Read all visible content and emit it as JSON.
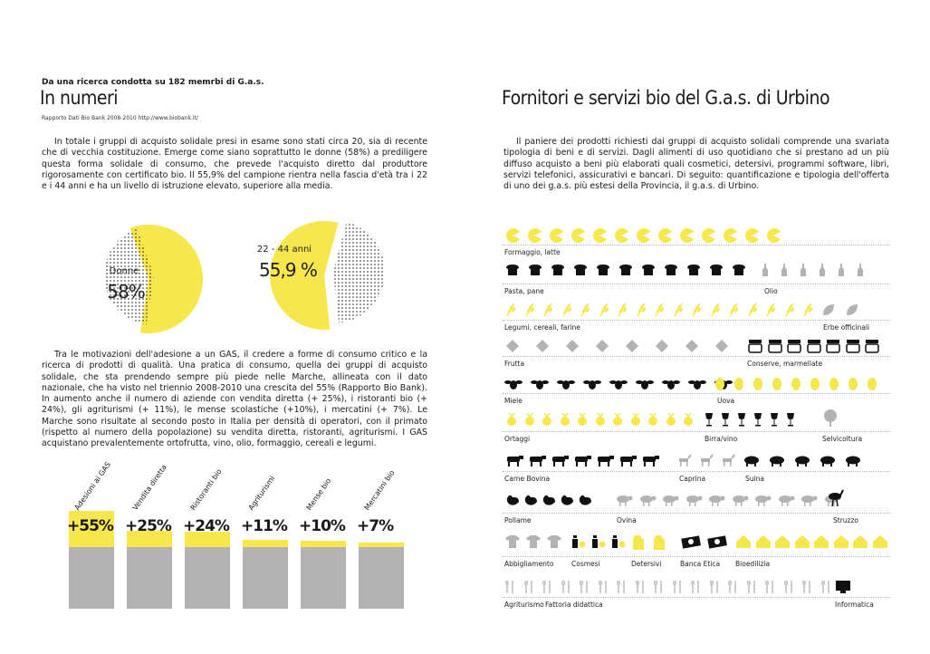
{
  "left": {
    "intro": "Da una ricerca condotta su 182 memrbi di G.a.s.",
    "title": "In numeri",
    "source": "Rapporto Dati Bio Bank 2008-2010 http://www.biobank.it/",
    "paragraph1": "In totale i gruppi di acquisto solidale presi in esame sono stati circa 20, sia di recente che di vecchia costituzione. Emerge come siano soprattutto le donne (58%) a prediligere questa forma solidale di consumo, che prevede l'acquisto diretto dal produttore rigorosamente con certificato bio. Il 55,9% del campione rientra nella fascia d'età tra i 22 e i 44 anni e ha un livello di istruzione elevato, superiore alla media.",
    "pie1": {
      "label": "Donne",
      "value": "58%",
      "fraction": 0.58
    },
    "pie2": {
      "label": "22 - 44 anni",
      "value": "55,9 %",
      "fraction": 0.559
    },
    "paragraph2": "Tra le motivazioni dell'adesione a un GAS, il credere a forme di consumo critico e la ricerca di prodotti di qualità. Una pratica di consumo, quella dei gruppi di acquisto solidale, che sta prendendo sempre più piede nelle Marche, allineata con il dato nazionale, che ha visto nel triennio 2008-2010 una crescita del 55% (Rapporto Bio Bank). In aumento anche il numero di aziende con vendita diretta (+ 25%), i ristoranti bio (+ 24%), gli agriturismi (+ 11%), le mense scolastiche (+10%), i mercatini (+ 7%). Le Marche sono risultate al secondo posto in Italia per densità di operatori, con il primato (rispetto al numero della popolazione) su vendita diretta, ristoranti, agriturismi. I GAS acquistano prevalentemente ortofrutta, vino, olio, formaggio, cereali e legumi.",
    "bars": [
      {
        "label": "Adesioni ai GAS",
        "value": "+55%",
        "pct": 55
      },
      {
        "label": "Vendita diretta",
        "value": "+25%",
        "pct": 25
      },
      {
        "label": "Ristoranti bio",
        "value": "+24%",
        "pct": 24
      },
      {
        "label": "Agriturismi",
        "value": "+11%",
        "pct": 11
      },
      {
        "label": "Mense bio",
        "value": "+10%",
        "pct": 10
      },
      {
        "label": "Mercatini bio",
        "value": "+7%",
        "pct": 7
      }
    ]
  },
  "right": {
    "title": "Fornitori e servizi bio del G.a.s. di Urbino",
    "paragraph": "Il paniere dei prodotti richiesti dai gruppi di acquisto solidali comprende una svariata tipologia di beni e di servizi. Dagli alimenti di uso quotidiano che si prestano ad un più diffuso acquisto a beni più elaborati quali cosmetici, detersivi, programmi software, libri, servizi telefonici, assicurativi e bancari. Di seguito: quantificazione e tipologia dell'offerta di uno dei g.a.s. più estesi della Provincia, il g.a.s. di Urbino.",
    "rows": [
      {
        "labels": [
          {
            "text": "Formaggio, latte",
            "offset": 0
          }
        ]
      },
      {
        "labels": [
          {
            "text": "Pasta, pane",
            "offset": 0
          },
          {
            "text": "Olio",
            "offset": 287
          }
        ]
      },
      {
        "labels": [
          {
            "text": "Legumi, cereali, farine",
            "offset": 0
          },
          {
            "text": "Erbe officinali",
            "offset": 352
          }
        ]
      },
      {
        "labels": [
          {
            "text": "Frutta",
            "offset": 0
          },
          {
            "text": "Conserve, marmellate",
            "offset": 268
          }
        ]
      },
      {
        "labels": [
          {
            "text": "Miele",
            "offset": 0
          },
          {
            "text": "Uova",
            "offset": 235
          }
        ]
      },
      {
        "labels": [
          {
            "text": "Ortaggi",
            "offset": 0
          },
          {
            "text": "Birra/vino",
            "offset": 221
          },
          {
            "text": "Selvicoltura",
            "offset": 351
          }
        ]
      },
      {
        "labels": [
          {
            "text": "Carne Bovina",
            "offset": 0
          },
          {
            "text": "Caprina",
            "offset": 193
          },
          {
            "text": "Suina",
            "offset": 266
          }
        ]
      },
      {
        "labels": [
          {
            "text": "Pollame",
            "offset": 0
          },
          {
            "text": "Ovina",
            "offset": 124
          },
          {
            "text": "Struzzo",
            "offset": 363
          }
        ]
      },
      {
        "labels": [
          {
            "text": "Abbigliamento",
            "offset": 0
          },
          {
            "text": "Cosmesi",
            "offset": 74
          },
          {
            "text": "Detersivi",
            "offset": 140
          },
          {
            "text": "Banca Etica",
            "offset": 194
          },
          {
            "text": "Bioedilizia",
            "offset": 255
          }
        ]
      },
      {
        "labels": [
          {
            "text": "Agriturismo",
            "offset": 0
          },
          {
            "text": "Fattoria didattica",
            "offset": 45
          },
          {
            "text": "Informatica",
            "offset": 365
          }
        ]
      }
    ]
  },
  "colors": {
    "yellow": "#f6e84c",
    "gray": "#b3b3b3",
    "dark": "#111111"
  }
}
